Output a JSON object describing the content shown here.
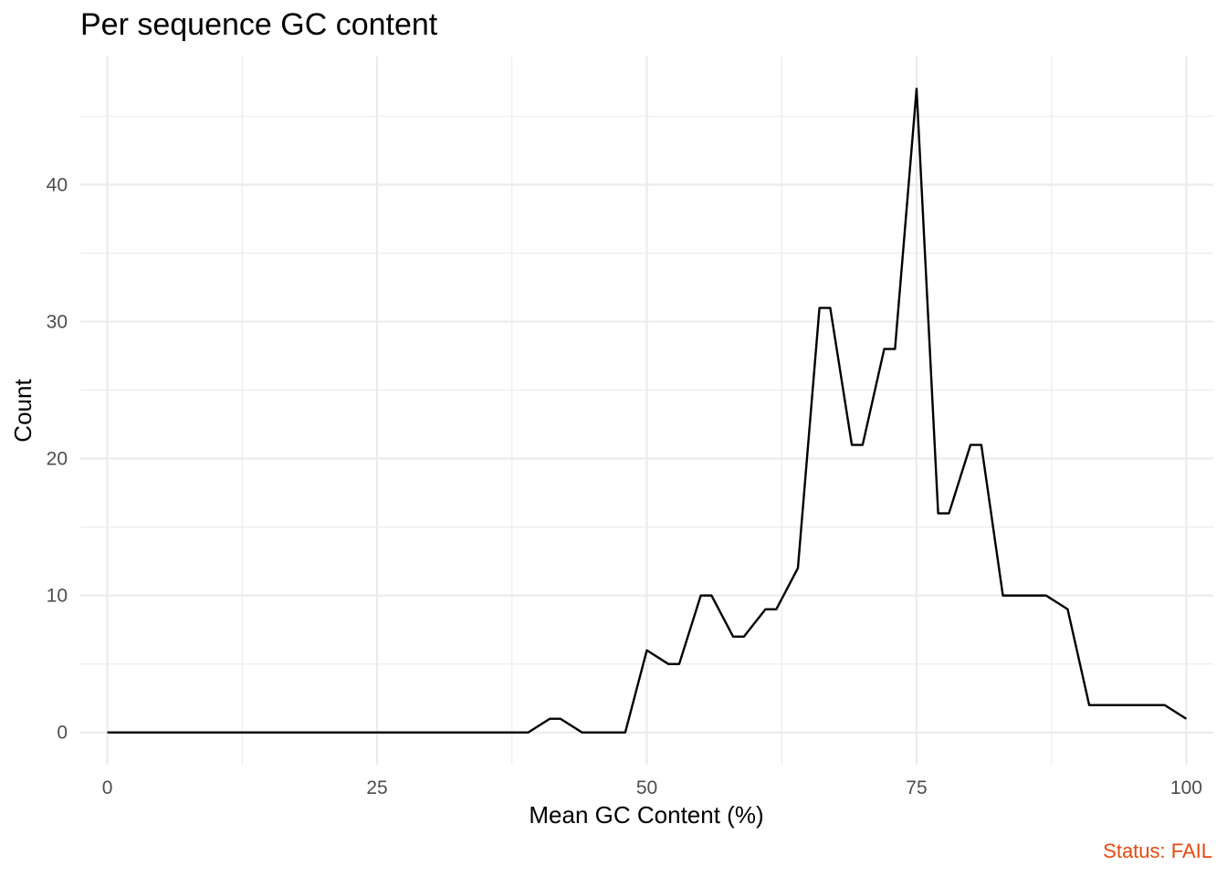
{
  "chart_data": {
    "type": "line",
    "title": "Per sequence GC content",
    "xlabel": "Mean GC Content (%)",
    "ylabel": "Count",
    "xlim": [
      -2.5,
      102.5
    ],
    "ylim": [
      -2.35,
      49.35
    ],
    "x_ticks": [
      0,
      25,
      50,
      75,
      100
    ],
    "x_tick_labels": [
      "0",
      "25",
      "50",
      "75",
      "100"
    ],
    "y_ticks": [
      0,
      10,
      20,
      30,
      40
    ],
    "y_tick_labels": [
      "0",
      "10",
      "20",
      "30",
      "40"
    ],
    "grid": true,
    "x": [
      0,
      39,
      41,
      42,
      44,
      48,
      50,
      52,
      53,
      55,
      56,
      58,
      59,
      61,
      62,
      64,
      66,
      67,
      69,
      70,
      72,
      73,
      75,
      77,
      78,
      80,
      81,
      83,
      87,
      89,
      91,
      98,
      100
    ],
    "y": [
      0,
      0,
      1,
      1,
      0,
      0,
      6,
      5,
      5,
      10,
      10,
      7,
      7,
      9,
      9,
      12,
      31,
      31,
      21,
      21,
      28,
      28,
      47,
      16,
      16,
      21,
      21,
      10,
      10,
      9,
      2,
      2,
      1
    ],
    "status": "Status: FAIL",
    "status_color": "#e8490f",
    "line_color": "#000000",
    "grid_color": "#ebebeb"
  }
}
